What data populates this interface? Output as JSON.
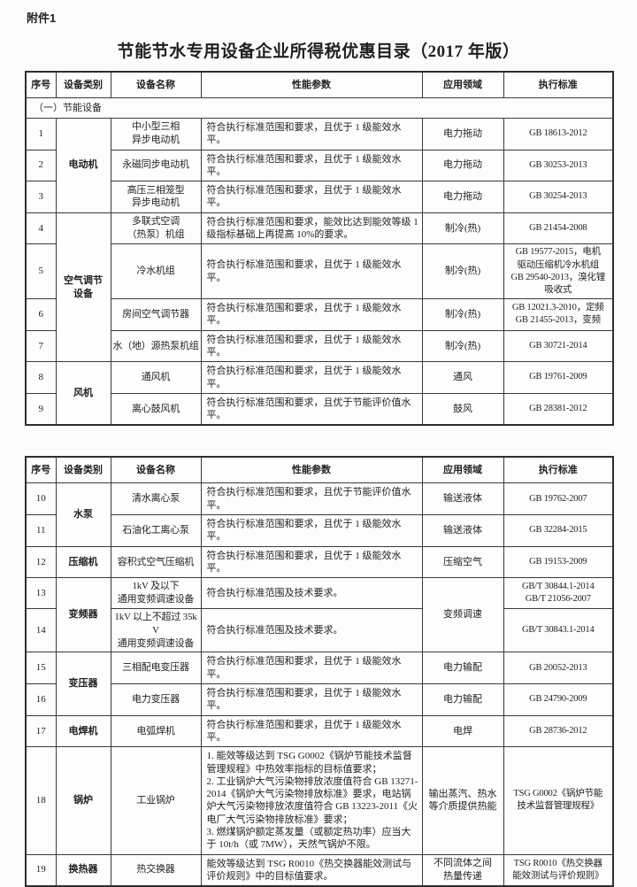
{
  "page": {
    "attachment_label": "附件1",
    "title": "节能节水专用设备企业所得税优惠目录（2017 年版）"
  },
  "tables": [
    {
      "headers": [
        "序号",
        "设备类别",
        "设备名称",
        "性能参数",
        "应用领域",
        "执行标准"
      ],
      "rows": [
        [
          {
            "t": "（一）节能设备",
            "cs": 6,
            "k": "section"
          }
        ],
        [
          {
            "t": "1",
            "k": "no"
          },
          {
            "t": "电动机",
            "rs": 3,
            "k": "cat"
          },
          {
            "t": "中小型三相\n异步电动机",
            "k": "name"
          },
          {
            "t": "符合执行标准范围和要求，且优于 1 级能效水平。",
            "k": "params"
          },
          {
            "t": "电力拖动",
            "k": "field"
          },
          {
            "t": "GB 18613-2012",
            "k": "std"
          }
        ],
        [
          {
            "t": "2",
            "k": "no"
          },
          {
            "t": "永磁同步电动机",
            "k": "name"
          },
          {
            "t": "符合执行标准范围和要求，且优于 1 级能效水平。",
            "k": "params"
          },
          {
            "t": "电力拖动",
            "k": "field"
          },
          {
            "t": "GB 30253-2013",
            "k": "std"
          }
        ],
        [
          {
            "t": "3",
            "k": "no"
          },
          {
            "t": "高压三相笼型\n异步电动机",
            "k": "name"
          },
          {
            "t": "符合执行标准范围和要求，且优于 1 级能效水平。",
            "k": "params"
          },
          {
            "t": "电力拖动",
            "k": "field"
          },
          {
            "t": "GB 30254-2013",
            "k": "std"
          }
        ],
        [
          {
            "t": "4",
            "k": "no"
          },
          {
            "t": "空气调节\n设备",
            "rs": 4,
            "k": "cat"
          },
          {
            "t": "多联式空调\n（热泵）机组",
            "k": "name"
          },
          {
            "t": "符合执行标准范围和要求，能效比达到能效等级 1 级指标基础上再提高 10%的要求。",
            "k": "params"
          },
          {
            "t": "制冷(热)",
            "k": "field"
          },
          {
            "t": "GB 21454-2008",
            "k": "std"
          }
        ],
        [
          {
            "t": "5",
            "k": "no"
          },
          {
            "t": "冷水机组",
            "k": "name"
          },
          {
            "t": "符合执行标准范围和要求，且优于 1 级能效水平。",
            "k": "params"
          },
          {
            "t": "制冷(热)",
            "k": "field"
          },
          {
            "t": "GB 19577-2015，电机\n驱动压缩机冷水机组\nGB 29540-2013，溴化锂\n吸收式",
            "k": "std"
          }
        ],
        [
          {
            "t": "6",
            "k": "no"
          },
          {
            "t": "房间空气调节器",
            "k": "name"
          },
          {
            "t": "符合执行标准范围和要求，且优于 1 级能效水平。",
            "k": "params"
          },
          {
            "t": "制冷(热)",
            "k": "field"
          },
          {
            "t": "GB 12021.3-2010，定频\nGB 21455-2013，变频",
            "k": "std"
          }
        ],
        [
          {
            "t": "7",
            "k": "no"
          },
          {
            "t": "水（地）源热泵机组",
            "k": "name"
          },
          {
            "t": "符合执行标准范围和要求，且优于 1 级能效水平。",
            "k": "params"
          },
          {
            "t": "制冷(热)",
            "k": "field"
          },
          {
            "t": "GB 30721-2014",
            "k": "std"
          }
        ],
        [
          {
            "t": "8",
            "k": "no"
          },
          {
            "t": "风机",
            "rs": 2,
            "k": "cat"
          },
          {
            "t": "通风机",
            "k": "name"
          },
          {
            "t": "符合执行标准范围和要求，且优于 1 级能效水平。",
            "k": "params"
          },
          {
            "t": "通风",
            "k": "field"
          },
          {
            "t": "GB 19761-2009",
            "k": "std"
          }
        ],
        [
          {
            "t": "9",
            "k": "no"
          },
          {
            "t": "离心鼓风机",
            "k": "name"
          },
          {
            "t": "符合执行标准范围和要求，且优于节能评价值水平。",
            "k": "params"
          },
          {
            "t": "鼓风",
            "k": "field"
          },
          {
            "t": "GB 28381-2012",
            "k": "std"
          }
        ]
      ]
    },
    {
      "headers": [
        "序号",
        "设备类别",
        "设备名称",
        "性能参数",
        "应用领域",
        "执行标准"
      ],
      "rows": [
        [
          {
            "t": "10",
            "k": "no"
          },
          {
            "t": "水泵",
            "rs": 2,
            "k": "cat"
          },
          {
            "t": "清水离心泵",
            "k": "name"
          },
          {
            "t": "符合执行标准范围和要求，且优于节能评价值水平。",
            "k": "params"
          },
          {
            "t": "输送液体",
            "k": "field"
          },
          {
            "t": "GB 19762-2007",
            "k": "std"
          }
        ],
        [
          {
            "t": "11",
            "k": "no"
          },
          {
            "t": "石油化工离心泵",
            "k": "name"
          },
          {
            "t": "符合执行标准范围和要求，且优于 1 级能效水平。",
            "k": "params"
          },
          {
            "t": "输送液体",
            "k": "field"
          },
          {
            "t": "GB 32284-2015",
            "k": "std"
          }
        ],
        [
          {
            "t": "12",
            "k": "no"
          },
          {
            "t": "压缩机",
            "k": "cat"
          },
          {
            "t": "容积式空气压缩机",
            "k": "name"
          },
          {
            "t": "符合执行标准范围和要求，且优于 1 级能效水平。",
            "k": "params"
          },
          {
            "t": "压缩空气",
            "k": "field"
          },
          {
            "t": "GB 19153-2009",
            "k": "std"
          }
        ],
        [
          {
            "t": "13",
            "k": "no"
          },
          {
            "t": "变频器",
            "rs": 2,
            "k": "cat"
          },
          {
            "t": "1kV 及以下\n通用变频调速设备",
            "k": "name"
          },
          {
            "t": "符合执行标准范围及技术要求。",
            "k": "params"
          },
          {
            "t": "变频调速",
            "rs": 2,
            "k": "field"
          },
          {
            "t": "GB/T 30844.1-2014\nGB/T 21056-2007",
            "k": "std"
          }
        ],
        [
          {
            "t": "14",
            "k": "no"
          },
          {
            "t": "1kV 以上不超过 35kV\n通用变频调速设备",
            "k": "name"
          },
          {
            "t": "符合执行标准范围及技术要求。",
            "k": "params"
          },
          {
            "t": "GB/T 30843.1-2014",
            "k": "std"
          }
        ],
        [
          {
            "t": "15",
            "k": "no"
          },
          {
            "t": "变压器",
            "rs": 2,
            "k": "cat"
          },
          {
            "t": "三相配电变压器",
            "k": "name"
          },
          {
            "t": "符合执行标准范围和要求，且优于 1 级能效水平。",
            "k": "params"
          },
          {
            "t": "电力输配",
            "k": "field"
          },
          {
            "t": "GB 20052-2013",
            "k": "std"
          }
        ],
        [
          {
            "t": "16",
            "k": "no"
          },
          {
            "t": "电力变压器",
            "k": "name"
          },
          {
            "t": "符合执行标准范围和要求，且优于 1 级能效水平。",
            "k": "params"
          },
          {
            "t": "电力输配",
            "k": "field"
          },
          {
            "t": "GB 24790-2009",
            "k": "std"
          }
        ],
        [
          {
            "t": "17",
            "k": "no"
          },
          {
            "t": "电焊机",
            "k": "cat"
          },
          {
            "t": "电弧焊机",
            "k": "name"
          },
          {
            "t": "符合执行标准范围和要求，且优于 1 级能效水平。",
            "k": "params"
          },
          {
            "t": "电焊",
            "k": "field"
          },
          {
            "t": "GB 28736-2012",
            "k": "std"
          }
        ],
        [
          {
            "t": "18",
            "k": "no"
          },
          {
            "t": "锅炉",
            "k": "cat"
          },
          {
            "t": "工业锅炉",
            "k": "name"
          },
          {
            "t": "1. 能效等级达到 TSG G0002《锅炉节能技术监督管理规程》中热效率指标的目标值要求；\n2. 工业锅炉大气污染物排放浓度值符合 GB 13271-2014《锅炉大气污染物排放标准》要求，电站锅炉大气污染物排放浓度值符合 GB 13223-2011《火电厂大气污染物排放标准》要求；\n3. 燃煤锅炉额定蒸发量（或额定热功率）应当大于 10t/h（或 7MW），天然气锅炉不限。",
            "k": "params"
          },
          {
            "t": "输出蒸汽、热水\n等介质提供热能",
            "k": "field"
          },
          {
            "t": "TSG G0002《锅炉节能\n技术监督管理规程》",
            "k": "std"
          }
        ],
        [
          {
            "t": "19",
            "k": "no"
          },
          {
            "t": "换热器",
            "k": "cat"
          },
          {
            "t": "热交换器",
            "k": "name"
          },
          {
            "t": "能效等级达到 TSG R0010《热交换器能效测试与评价规则》中的目标值要求。",
            "k": "params"
          },
          {
            "t": "不同流体之间\n热量传递",
            "k": "field"
          },
          {
            "t": "TSG R0010《热交换器\n能效测试与评价规则》",
            "k": "std"
          }
        ]
      ]
    }
  ]
}
